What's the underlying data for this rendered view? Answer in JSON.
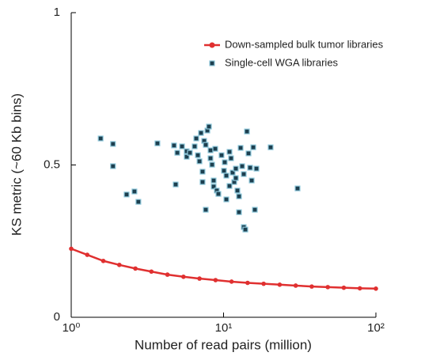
{
  "chart_data": {
    "type": "scatter",
    "xlabel": "Number of read pairs (million)",
    "ylabel": "KS metric (~60 Kb bins)",
    "xscale": "log",
    "xlim": [
      1,
      100
    ],
    "xticks": [
      {
        "value": 1,
        "label": "10⁰"
      },
      {
        "value": 10,
        "label": "10¹"
      },
      {
        "value": 100,
        "label": "10²"
      }
    ],
    "ylim": [
      0,
      1
    ],
    "yticks": [
      0,
      0.5,
      1
    ],
    "legend": "upper right",
    "series": [
      {
        "name": "Down-sampled bulk tumor libraries",
        "kind": "line",
        "color": "#e03030",
        "x": [
          1,
          1.274,
          1.624,
          2.069,
          2.637,
          3.36,
          4.281,
          5.456,
          6.952,
          8.859,
          11.29,
          14.38,
          18.33,
          23.36,
          29.76,
          37.93,
          48.33,
          61.58,
          78.48,
          100
        ],
        "values": [
          0.225,
          0.205,
          0.185,
          0.172,
          0.16,
          0.15,
          0.14,
          0.133,
          0.127,
          0.122,
          0.117,
          0.113,
          0.11,
          0.107,
          0.104,
          0.101,
          0.099,
          0.097,
          0.095,
          0.094
        ]
      },
      {
        "name": "Single-cell WGA libraries",
        "kind": "scatter",
        "color": "#1d3f4f",
        "x": [
          1.56,
          1.88,
          1.88,
          2.31,
          2.6,
          2.76,
          3.68,
          4.73,
          4.85,
          4.97,
          5.34,
          5.73,
          5.73,
          6.01,
          6.46,
          6.62,
          6.78,
          6.95,
          7.11,
          7.28,
          7.28,
          7.46,
          7.64,
          7.64,
          7.83,
          8.02,
          8.21,
          8.21,
          8.41,
          8.61,
          8.61,
          8.82,
          9.03,
          9.25,
          9.7,
          10.06,
          10.18,
          10.43,
          10.43,
          10.94,
          10.94,
          11.2,
          11.47,
          11.75,
          12.04,
          12.04,
          12.33,
          12.63,
          12.63,
          12.94,
          13.25,
          13.57,
          13.57,
          13.9,
          14.24,
          14.58,
          14.94,
          15.3,
          15.67,
          16.05,
          16.44,
          20.37,
          30.6
        ],
        "values": [
          0.587,
          0.569,
          0.496,
          0.403,
          0.413,
          0.379,
          0.571,
          0.564,
          0.436,
          0.54,
          0.561,
          0.545,
          0.527,
          0.54,
          0.561,
          0.587,
          0.532,
          0.512,
          0.605,
          0.478,
          0.444,
          0.579,
          0.566,
          0.353,
          0.613,
          0.626,
          0.548,
          0.522,
          0.501,
          0.449,
          0.429,
          0.553,
          0.416,
          0.405,
          0.532,
          0.481,
          0.509,
          0.465,
          0.387,
          0.543,
          0.431,
          0.522,
          0.475,
          0.444,
          0.488,
          0.457,
          0.416,
          0.397,
          0.345,
          0.556,
          0.496,
          0.47,
          0.296,
          0.288,
          0.61,
          0.538,
          0.491,
          0.449,
          0.558,
          0.353,
          0.488,
          0.558,
          0.423
        ]
      }
    ]
  }
}
